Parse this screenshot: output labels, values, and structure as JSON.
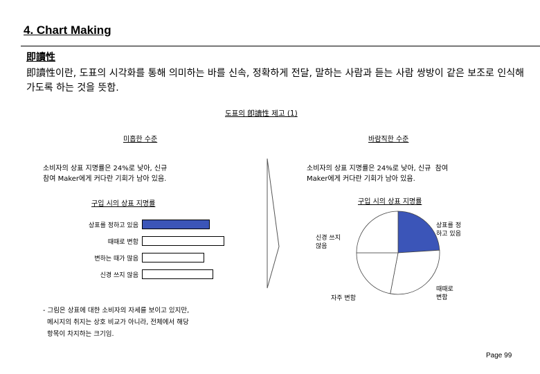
{
  "page_title": "4. Chart Making",
  "section_heading": "即讀性",
  "definition": "即讀性이란, 도표의 시각화를 통해 의미하는 바를 신속, 정확하게 전달, 말하는 사람과 듣는 사람 쌍방이 같은 보조로 인식해 가도록 하는 것을 뜻함.",
  "figure_caption": "도표의 卽讀性 제고 (1)",
  "left": {
    "heading": "미흡한 수준",
    "message": "소비자의 상표 지명률은 24%로 낮아, 신규\n참여 Maker에게 커다란 기회가 남아 있음.",
    "chart_title": "구입 시의 상표 지명률"
  },
  "right": {
    "heading": "바람직한 수준",
    "message": "소비자의 상표 지명률은 24%로 낮아, 신규  참여\nMaker에게 커다란 기회가 남아 있음.",
    "chart_title": "구입 시의 상표 지명률"
  },
  "footnote": "- 그림은 상표에 대한 소비자의 자세를 보이고 있지만,\n  메시지의 취지는 상호 비교가 아니라, 전체에서 해당\n  항목이 차지하는 크기임.",
  "page_number": "Page 99",
  "colors": {
    "highlight": "#3b55b8"
  },
  "chart_data": [
    {
      "type": "bar",
      "orientation": "horizontal",
      "title": "구입 시의 상표 지명률",
      "categories": [
        "상표를 정하고 있음",
        "때때로 변함",
        "변하는 때가 많음",
        "신경 쓰지 않음"
      ],
      "values": [
        24,
        29,
        22,
        25
      ],
      "highlight_index": 0
    },
    {
      "type": "pie",
      "title": "구입 시의 상표 지명률",
      "categories": [
        "상표를 정\n하고 있음",
        "때때로\n변함",
        "자주 변함",
        "신경 쓰지\n않음"
      ],
      "values": [
        24,
        29,
        22,
        25
      ],
      "highlight_index": 0
    }
  ]
}
